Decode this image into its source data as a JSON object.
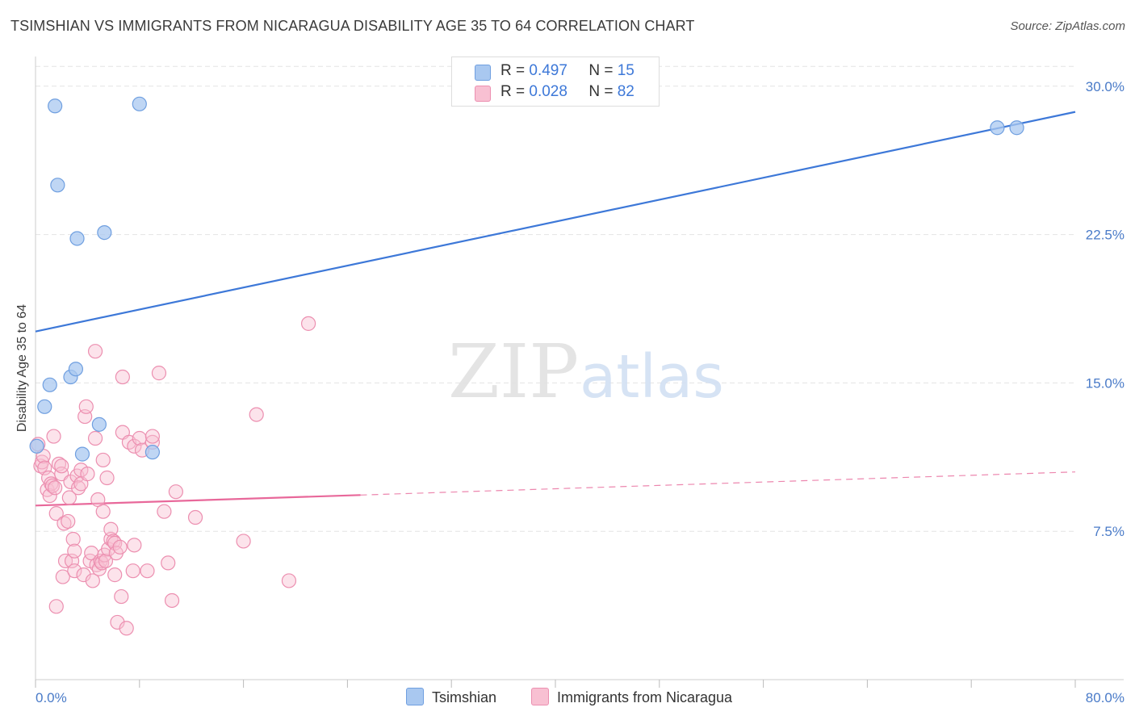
{
  "title": "TSIMSHIAN VS IMMIGRANTS FROM NICARAGUA DISABILITY AGE 35 TO 64 CORRELATION CHART",
  "source": "Source: ZipAtlas.com",
  "watermark": {
    "zip": "ZIP",
    "atlas": "atlas"
  },
  "legend": {
    "rows": [
      {
        "r_label": "R =",
        "r_value": "0.497",
        "n_label": "N =",
        "n_value": "15",
        "color": "#a9c8f0",
        "border": "#6f9fe0"
      },
      {
        "r_label": "R =",
        "r_value": "0.028",
        "n_label": "N =",
        "n_value": "82",
        "color": "#f8c0d2",
        "border": "#ec8fb0"
      }
    ]
  },
  "bottom_legend": [
    {
      "label": "Tsimshian",
      "color": "#a9c8f0",
      "border": "#6f9fe0"
    },
    {
      "label": "Immigrants from Nicaragua",
      "color": "#f8c0d2",
      "border": "#ec8fb0"
    }
  ],
  "chart_data": {
    "type": "scatter",
    "title": "TSIMSHIAN VS IMMIGRANTS FROM NICARAGUA DISABILITY AGE 35 TO 64 CORRELATION CHART",
    "xlabel": "",
    "ylabel": "Disability Age 35 to 64",
    "xlim": [
      0,
      80
    ],
    "ylim": [
      0,
      31.5
    ],
    "x_tick_labels": {
      "left": "0.0%",
      "right": "80.0%"
    },
    "y_ticks": [
      7.5,
      15.0,
      22.5,
      30.0
    ],
    "y_tick_labels": [
      "7.5%",
      "15.0%",
      "22.5%",
      "30.0%"
    ],
    "grid": true,
    "series": [
      {
        "name": "Tsimshian",
        "color": "#a9c8f0",
        "edge": "#6f9fe0",
        "line_color": "#3d78d8",
        "trend": {
          "x0": 0,
          "y0": 17.6,
          "x1": 80,
          "y1": 28.7,
          "dashed_from": null
        },
        "points": [
          [
            1.5,
            29.0
          ],
          [
            8.0,
            29.1
          ],
          [
            1.7,
            25.0
          ],
          [
            3.2,
            22.3
          ],
          [
            5.3,
            22.6
          ],
          [
            0.1,
            11.8
          ],
          [
            0.7,
            13.8
          ],
          [
            1.1,
            14.9
          ],
          [
            2.7,
            15.3
          ],
          [
            3.1,
            15.7
          ],
          [
            3.6,
            11.4
          ],
          [
            4.9,
            12.9
          ],
          [
            9.0,
            11.5
          ],
          [
            74.0,
            27.9
          ],
          [
            75.5,
            27.9
          ]
        ]
      },
      {
        "name": "Immigrants from Nicaragua",
        "color": "#f8c0d2",
        "edge": "#ec8fb0",
        "line_color": "#e8689a",
        "trend": {
          "x0": 0,
          "y0": 8.8,
          "x1": 80,
          "y1": 10.5,
          "dashed_from": 25
        },
        "points": [
          [
            0.2,
            11.9
          ],
          [
            0.4,
            10.8
          ],
          [
            0.5,
            11.0
          ],
          [
            0.6,
            11.3
          ],
          [
            0.7,
            10.7
          ],
          [
            0.9,
            9.6
          ],
          [
            1.0,
            10.2
          ],
          [
            1.1,
            9.3
          ],
          [
            1.2,
            9.9
          ],
          [
            1.3,
            9.8
          ],
          [
            1.4,
            12.3
          ],
          [
            1.5,
            9.7
          ],
          [
            1.6,
            8.4
          ],
          [
            1.6,
            3.7
          ],
          [
            1.8,
            10.9
          ],
          [
            2.0,
            10.4
          ],
          [
            2.0,
            10.8
          ],
          [
            2.1,
            5.2
          ],
          [
            2.2,
            7.9
          ],
          [
            2.3,
            6.0
          ],
          [
            2.5,
            8.0
          ],
          [
            2.6,
            9.2
          ],
          [
            2.7,
            10.0
          ],
          [
            2.8,
            6.0
          ],
          [
            2.9,
            7.1
          ],
          [
            3.0,
            5.5
          ],
          [
            3.0,
            6.5
          ],
          [
            3.2,
            10.3
          ],
          [
            3.3,
            9.7
          ],
          [
            3.5,
            10.6
          ],
          [
            3.5,
            9.9
          ],
          [
            3.7,
            5.3
          ],
          [
            3.8,
            13.3
          ],
          [
            3.9,
            13.8
          ],
          [
            4.0,
            10.4
          ],
          [
            4.2,
            6.0
          ],
          [
            4.3,
            6.4
          ],
          [
            4.4,
            5.0
          ],
          [
            4.6,
            12.2
          ],
          [
            4.7,
            5.8
          ],
          [
            4.8,
            9.1
          ],
          [
            4.9,
            5.6
          ],
          [
            5.0,
            6.0
          ],
          [
            5.1,
            5.9
          ],
          [
            5.2,
            8.5
          ],
          [
            5.2,
            11.1
          ],
          [
            5.3,
            6.3
          ],
          [
            5.4,
            6.0
          ],
          [
            5.5,
            10.2
          ],
          [
            5.6,
            6.6
          ],
          [
            5.8,
            7.1
          ],
          [
            5.8,
            7.6
          ],
          [
            6.0,
            7.0
          ],
          [
            6.1,
            6.9
          ],
          [
            6.1,
            5.3
          ],
          [
            6.2,
            6.4
          ],
          [
            6.3,
            2.9
          ],
          [
            6.5,
            6.7
          ],
          [
            6.6,
            4.2
          ],
          [
            6.7,
            12.5
          ],
          [
            6.7,
            15.3
          ],
          [
            7.0,
            2.6
          ],
          [
            7.2,
            12.0
          ],
          [
            7.5,
            5.5
          ],
          [
            7.6,
            6.8
          ],
          [
            7.6,
            11.8
          ],
          [
            8.0,
            12.2
          ],
          [
            8.2,
            11.6
          ],
          [
            8.6,
            5.5
          ],
          [
            9.0,
            12.0
          ],
          [
            9.0,
            12.3
          ],
          [
            9.5,
            15.5
          ],
          [
            9.9,
            8.5
          ],
          [
            10.2,
            5.9
          ],
          [
            10.5,
            4.0
          ],
          [
            10.8,
            9.5
          ],
          [
            12.3,
            8.2
          ],
          [
            16.0,
            7.0
          ],
          [
            17.0,
            13.4
          ],
          [
            19.5,
            5.0
          ],
          [
            21.0,
            18.0
          ],
          [
            4.6,
            16.6
          ]
        ]
      }
    ]
  }
}
